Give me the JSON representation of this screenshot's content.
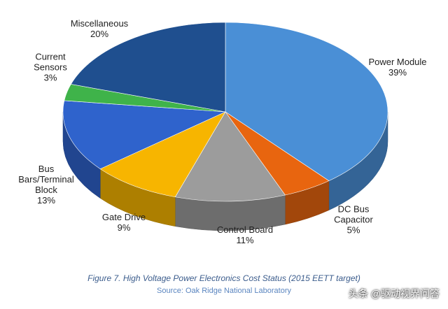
{
  "chart_data": {
    "type": "pie",
    "categories": [
      "Power Module",
      "DC Bus Capacitor",
      "Control Board",
      "Gate Drive",
      "Bus Bars/Terminal Block",
      "Current Sensors",
      "Miscellaneous"
    ],
    "values": [
      39,
      5,
      11,
      9,
      13,
      3,
      20
    ],
    "value_labels": [
      "39%",
      "5%",
      "11%",
      "9%",
      "13%",
      "3%",
      "20%"
    ],
    "colors": [
      "#4a8fd6",
      "#e8650f",
      "#9c9c9c",
      "#f7b500",
      "#2f63cc",
      "#3fb34a",
      "#1f4f8f"
    ],
    "caption": "Figure 7. High Voltage Power Electronics Cost Status (2015 EETT target)",
    "source": "Source: Oak Ridge National Laboratory",
    "watermark": "头条 @驱动视界问答"
  }
}
